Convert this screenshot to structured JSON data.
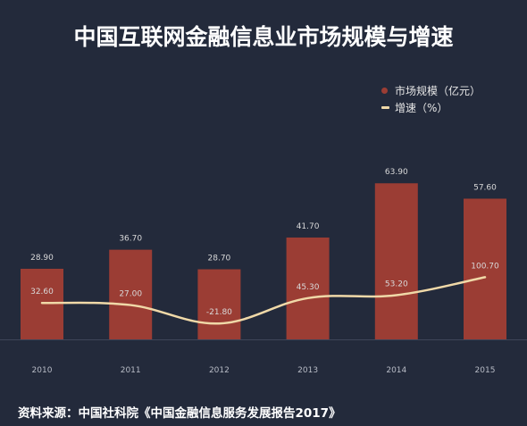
{
  "chart_data": {
    "type": "bar",
    "title": "中国互联网金融信息业市场规模与增速",
    "categories": [
      "2010",
      "2011",
      "2012",
      "2013",
      "2014",
      "2015"
    ],
    "series": [
      {
        "name": "市场规模（亿元）",
        "type": "bar",
        "values": [
          28.9,
          36.7,
          28.7,
          41.7,
          63.9,
          57.6
        ],
        "labels": [
          "28.90",
          "36.70",
          "28.70",
          "41.70",
          "63.90",
          "57.60"
        ],
        "color": "#9b3d34"
      },
      {
        "name": "增速（%）",
        "type": "line",
        "values": [
          32.6,
          27.0,
          -21.8,
          45.3,
          53.2,
          100.7
        ],
        "labels": [
          "32.60",
          "27.00",
          "-21.80",
          "45.30",
          "53.20",
          "100.70"
        ],
        "color": "#f0d9a8"
      }
    ],
    "grid": false,
    "legend_position": "top-right"
  },
  "source": "资料来源：中国社科院《中国金融信息服务发展报告2017》",
  "colors": {
    "background": "#232a3b",
    "bar": "#9b3d34",
    "line": "#f0d9a8",
    "label": "#d9d9d9",
    "axis": "#3e4559"
  }
}
